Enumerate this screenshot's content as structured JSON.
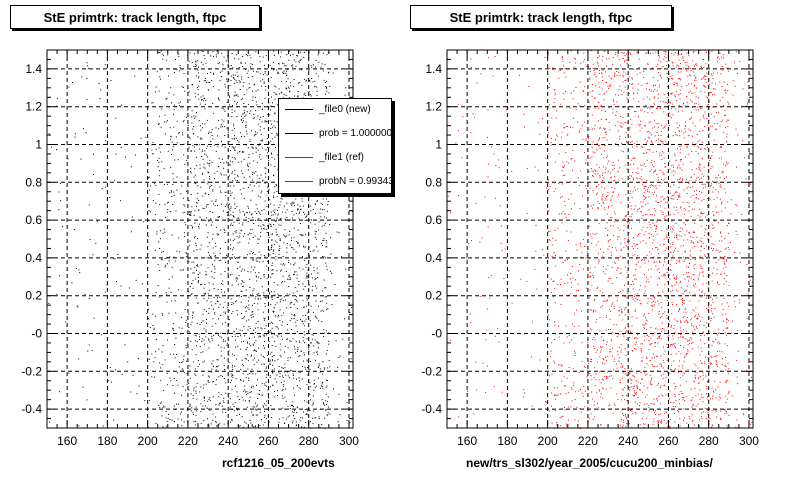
{
  "chart_data": [
    {
      "type": "scatter",
      "title": "StE primtrk: track length, ftpc",
      "xlabel": "rcf1216_05_200evts",
      "ylabel": "",
      "xlim": [
        150,
        302
      ],
      "ylim": [
        -0.5,
        1.5
      ],
      "x_ticks": [
        "160",
        "180",
        "200",
        "220",
        "240",
        "260",
        "280",
        "300"
      ],
      "y_ticks": [
        "-0.4",
        "-0.2",
        "-0",
        "0.2",
        "0.4",
        "0.6",
        "0.8",
        "1",
        "1.2",
        "1.4"
      ],
      "grid": true,
      "color": "#000000",
      "bands": [
        {
          "x": [
            150,
            200
          ],
          "density": 0.05
        },
        {
          "x": [
            200,
            220
          ],
          "density": 0.35
        },
        {
          "x": [
            220,
            240
          ],
          "density": 0.7
        },
        {
          "x": [
            240,
            260
          ],
          "density": 0.85
        },
        {
          "x": [
            260,
            280
          ],
          "density": 0.9
        },
        {
          "x": [
            280,
            290
          ],
          "density": 0.7
        },
        {
          "x": [
            290,
            302
          ],
          "density": 0.12
        }
      ],
      "legend": {
        "position": "top-right",
        "entries": [
          {
            "label": "_file0 (new)",
            "color": "#000000"
          },
          {
            "label": "prob = 1.000000",
            "color": "#000000"
          },
          {
            "label": "_file1 (ref)",
            "color": "#ff0000"
          },
          {
            "label": "probN = 0.993432",
            "color": "#ff0000"
          }
        ]
      }
    },
    {
      "type": "scatter",
      "title": "StE primtrk: track length, ftpc",
      "xlabel": "new/trs_sl302/year_2005/cucu200_minbias/",
      "ylabel": "",
      "xlim": [
        150,
        302
      ],
      "ylim": [
        -0.5,
        1.5
      ],
      "x_ticks": [
        "160",
        "180",
        "200",
        "220",
        "240",
        "260",
        "280",
        "300"
      ],
      "y_ticks": [
        "-0.4",
        "-0.2",
        "-0",
        "0.2",
        "0.4",
        "0.6",
        "0.8",
        "1",
        "1.2",
        "1.4"
      ],
      "grid": true,
      "color": "#ff0000",
      "bands": [
        {
          "x": [
            150,
            200
          ],
          "density": 0.05
        },
        {
          "x": [
            200,
            220
          ],
          "density": 0.35
        },
        {
          "x": [
            220,
            240
          ],
          "density": 0.7
        },
        {
          "x": [
            240,
            260
          ],
          "density": 0.85
        },
        {
          "x": [
            260,
            280
          ],
          "density": 0.9
        },
        {
          "x": [
            280,
            290
          ],
          "density": 0.7
        },
        {
          "x": [
            290,
            302
          ],
          "density": 0.12
        }
      ]
    }
  ]
}
